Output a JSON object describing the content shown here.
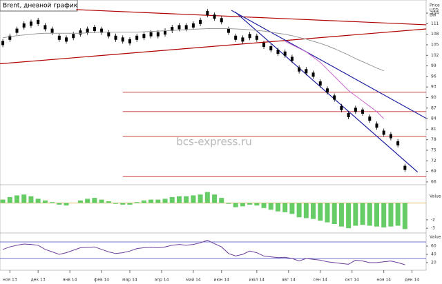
{
  "chart_data": {
    "type": "candlestick",
    "title": "Brent, дневной график",
    "watermark": "bcs-express.ru",
    "y_axis_label": [
      "Price",
      "USD",
      "Bbl"
    ],
    "xlim": [
      -0.4,
      60
    ],
    "xticks": [
      {
        "value": 1,
        "label": "ноя 13"
      },
      {
        "value": 5,
        "label": "дек 13"
      },
      {
        "value": 9.5,
        "label": "янв 14"
      },
      {
        "value": 14,
        "label": "фев 14"
      },
      {
        "value": 18,
        "label": "мар 14"
      },
      {
        "value": 22.5,
        "label": "апр 14"
      },
      {
        "value": 27,
        "label": "май 14"
      },
      {
        "value": 31,
        "label": "июн 14"
      },
      {
        "value": 36,
        "label": "июл 14"
      },
      {
        "value": 40.5,
        "label": "авг 14"
      },
      {
        "value": 45,
        "label": "сен 14"
      },
      {
        "value": 49.5,
        "label": "окт 14"
      },
      {
        "value": 54,
        "label": "ноя 14"
      },
      {
        "value": 58,
        "label": "дек 14"
      }
    ],
    "ylim": [
      65.2,
      114.8
    ],
    "yticks": [
      66,
      69,
      72,
      75,
      78,
      81,
      84,
      87,
      90,
      93,
      96,
      99,
      102,
      105,
      108,
      111,
      114
    ],
    "series": [
      {
        "color": "#000000",
        "values": [
          105.5,
          107,
          109,
          110.5,
          111,
          111.5,
          110,
          109,
          107,
          106.5,
          107.5,
          108.5,
          109,
          109.5,
          109,
          108,
          107,
          106.5,
          106,
          107,
          107.5,
          108,
          108,
          108.5,
          109.5,
          110,
          110,
          110.5,
          111.5,
          114,
          113,
          112,
          109,
          107,
          106.5,
          107.5,
          107,
          105,
          104,
          103,
          102.5,
          101,
          98,
          97.5,
          96.5,
          94,
          92,
          90,
          87,
          85,
          86.5,
          86,
          84,
          82,
          80,
          79,
          77,
          70
        ]
      },
      {
        "color": "#999999",
        "values": [
          107,
          107.3,
          107.6,
          107.8,
          108,
          108.2,
          108.3,
          108.3,
          108.3,
          108.3,
          108.3,
          108.3,
          108.4,
          108.5,
          108.6,
          108.6,
          108.6,
          108.6,
          108.6,
          108.6,
          108.7,
          108.8,
          108.9,
          109,
          109.1,
          109.2,
          109.3,
          109.4,
          109.5,
          109.6,
          109.6,
          109.6,
          109.6,
          109.5,
          109.4,
          109.3,
          109.1,
          108.9,
          108.6,
          108.3,
          108,
          107.6,
          107.1,
          106.6,
          106,
          105.4,
          104.7,
          103.9,
          103,
          102.1,
          101.1,
          100.2,
          99.3,
          98.4,
          97.6,
          null,
          null,
          null
        ]
      },
      {
        "color": "#cc66cc",
        "values": [
          null,
          null,
          null,
          null,
          null,
          null,
          null,
          null,
          null,
          null,
          null,
          null,
          null,
          null,
          null,
          null,
          null,
          null,
          null,
          null,
          null,
          null,
          null,
          null,
          null,
          null,
          null,
          null,
          null,
          null,
          null,
          null,
          null,
          null,
          null,
          null,
          null,
          null,
          null,
          null,
          106,
          105,
          104,
          103,
          101.5,
          100,
          98,
          96,
          94,
          92,
          90.5,
          89,
          87.5,
          86,
          84,
          null,
          null,
          null
        ]
      }
    ],
    "levels": [
      91.5,
      86,
      79,
      67.5
    ],
    "levels_color": "#c00000",
    "trendlines": [
      {
        "color": "#b00000",
        "points": [
          [
            10.4,
            115
          ],
          [
            60,
            110.7
          ]
        ]
      },
      {
        "color": "#b00000",
        "points": [
          [
            -0.4,
            99.6
          ],
          [
            60,
            109.5
          ]
        ]
      },
      {
        "color": "#2020a0",
        "points": [
          [
            32.4,
            114.8
          ],
          [
            60,
            84.1
          ]
        ]
      },
      {
        "color": "#2020a0",
        "points": [
          [
            32.9,
            114.4
          ],
          [
            58.8,
            68.8
          ]
        ]
      }
    ],
    "macd": {
      "label": "Value",
      "color": "#66cc66",
      "ylim": [
        -3.4,
        2
      ],
      "yticks": [
        -2,
        -3
      ],
      "values": [
        0.4,
        0.7,
        0.9,
        1,
        0.8,
        0.5,
        0.3,
        0.1,
        -0.2,
        -0.3,
        0,
        0.3,
        0.5,
        0.6,
        0.4,
        0.2,
        -0.1,
        -0.2,
        -0.2,
        0.1,
        0.3,
        0.4,
        0.4,
        0.5,
        0.7,
        0.8,
        0.8,
        0.9,
        1,
        1.3,
        1,
        0.6,
        -0.1,
        -0.5,
        -0.4,
        -0.2,
        -0.3,
        -0.6,
        -0.8,
        -1,
        -1.1,
        -1.3,
        -1.7,
        -1.8,
        -1.9,
        -2.1,
        -2.3,
        -2.5,
        -2.8,
        -3,
        -2.7,
        -2.6,
        -2.7,
        -2.8,
        -2.9,
        -2.8,
        -2.7,
        -3.1
      ]
    },
    "rsi": {
      "label": "Value",
      "color": "#6a3d9a",
      "ylim": [
        5,
        85
      ],
      "yticks": [
        60,
        40,
        20
      ],
      "levels": [
        70,
        30
      ],
      "values": [
        52,
        58,
        62,
        65,
        64,
        62,
        52,
        46,
        40,
        44,
        50,
        56,
        57,
        58,
        52,
        46,
        42,
        44,
        48,
        54,
        56,
        57,
        56,
        58,
        62,
        64,
        62,
        64,
        68,
        74,
        66,
        58,
        42,
        36,
        40,
        48,
        44,
        36,
        34,
        32,
        33,
        30,
        24,
        30,
        28,
        26,
        22,
        20,
        18,
        16,
        26,
        24,
        20,
        20,
        22,
        24,
        20,
        15
      ]
    }
  }
}
